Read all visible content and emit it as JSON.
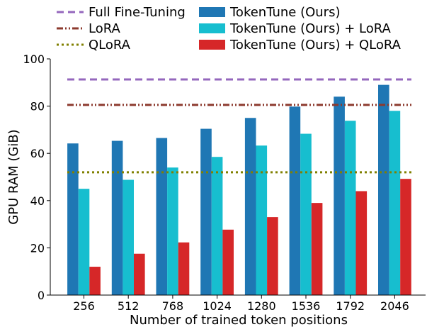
{
  "chart_data": {
    "type": "bar",
    "title": "",
    "xlabel": "Number of trained token positions",
    "ylabel": "GPU RAM (GiB)",
    "ylim": [
      0,
      100
    ],
    "yticks": [
      0,
      20,
      40,
      60,
      80,
      100
    ],
    "categories": [
      "256",
      "512",
      "768",
      "1024",
      "1280",
      "1536",
      "1792",
      "2046"
    ],
    "series": [
      {
        "name": "TokenTune (Ours)",
        "color": "#1f77b4",
        "values": [
          64.2,
          65.3,
          66.5,
          70.4,
          75.0,
          79.8,
          84.0,
          89.0
        ]
      },
      {
        "name": "TokenTune (Ours) + LoRA",
        "color": "#17becf",
        "values": [
          45.0,
          48.8,
          54.0,
          58.5,
          63.3,
          68.3,
          73.8,
          78.0
        ]
      },
      {
        "name": "TokenTune (Ours) + QLoRA",
        "color": "#d62728",
        "values": [
          12.0,
          17.5,
          22.3,
          27.7,
          33.0,
          39.0,
          44.0,
          49.2
        ]
      }
    ],
    "reference_lines": [
      {
        "name": "Full Fine-Tuning",
        "value": 91.3,
        "color": "#9467bd",
        "style": "dashed"
      },
      {
        "name": "LoRA",
        "value": 80.5,
        "color": "#8c3a2e",
        "style": "dashdotdot"
      },
      {
        "name": "QLoRA",
        "value": 52.0,
        "color": "#808000",
        "style": "dotted"
      }
    ],
    "legend": {
      "placement": "top",
      "entries": [
        "Full Fine-Tuning",
        "LoRA",
        "QLoRA",
        "TokenTune (Ours)",
        "TokenTune (Ours) + LoRA",
        "TokenTune (Ours) + QLoRA"
      ]
    }
  }
}
